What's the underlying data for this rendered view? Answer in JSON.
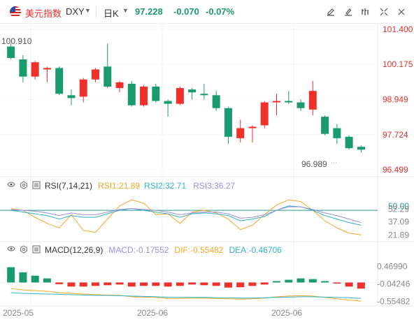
{
  "header": {
    "name": "美元指数",
    "code": "DXY",
    "period": "日K",
    "price": "97.228",
    "change": "-0.070",
    "change_pct": "-0.07%"
  },
  "colors": {
    "up": "#f0302b",
    "down": "#1a9b6d",
    "rsi1": "#f5a623",
    "rsi2": "#2fb3c9",
    "rsi3": "#9b8fe0",
    "dif": "#f5a623",
    "dea": "#2fb3c9"
  },
  "toolbar_icons": [
    "edit-icon",
    "draw-icon",
    "indicator-icon",
    "fullscreen-icon",
    "settings-icon"
  ],
  "chart_data": {
    "type": "candlestick",
    "price_axis": {
      "ticks": [
        "101.400",
        "100.175",
        "98.949",
        "97.724",
        "96.499"
      ],
      "ylim": [
        96.499,
        101.4
      ]
    },
    "annotations": {
      "high_label": "100.910",
      "low_label": "96.989"
    },
    "candles": [
      [
        100.8,
        100.4,
        100.91,
        100.35
      ],
      [
        100.35,
        99.75,
        100.5,
        99.55
      ],
      [
        99.75,
        100.25,
        100.3,
        99.65
      ],
      [
        100.0,
        100.05,
        100.1,
        99.55
      ],
      [
        100.05,
        99.15,
        100.1,
        99.1
      ],
      [
        99.1,
        99.0,
        99.3,
        98.75
      ],
      [
        99.05,
        99.65,
        99.7,
        98.85
      ],
      [
        99.65,
        100.0,
        100.05,
        99.55
      ],
      [
        100.1,
        99.4,
        100.9,
        99.35
      ],
      [
        99.35,
        99.55,
        99.6,
        99.2
      ],
      [
        99.5,
        98.75,
        99.6,
        98.7
      ],
      [
        98.75,
        99.4,
        99.45,
        98.7
      ],
      [
        99.4,
        98.9,
        99.5,
        98.85
      ],
      [
        98.9,
        98.8,
        98.95,
        98.35
      ],
      [
        98.8,
        99.35,
        99.4,
        98.75
      ],
      [
        99.3,
        99.2,
        99.35,
        98.95
      ],
      [
        99.15,
        99.1,
        99.5,
        98.95
      ],
      [
        99.1,
        98.65,
        99.25,
        98.55
      ],
      [
        98.65,
        97.65,
        98.7,
        97.4
      ],
      [
        97.6,
        97.95,
        98.25,
        97.45
      ],
      [
        97.95,
        98.0,
        98.05,
        97.45
      ],
      [
        98.05,
        98.85,
        98.9,
        97.95
      ],
      [
        98.85,
        98.9,
        99.15,
        98.4
      ],
      [
        98.9,
        98.85,
        99.25,
        98.8
      ],
      [
        98.85,
        98.65,
        98.95,
        98.55
      ],
      [
        98.6,
        99.25,
        99.6,
        98.4
      ],
      [
        98.35,
        97.75,
        98.4,
        97.7
      ],
      [
        97.95,
        97.6,
        98.1,
        97.4
      ],
      [
        97.65,
        97.25,
        97.7,
        97.2
      ],
      [
        97.3,
        97.2,
        97.35,
        97.1
      ]
    ],
    "x_labels": [
      "2025-05",
      "2025-06",
      "2025-06"
    ],
    "rsi": {
      "label": "RSI(7,14,21)",
      "values": [
        "RSI1:21.89",
        "RSI2:32.71",
        "RSI3:36.27"
      ],
      "axis_ticks": [
        "50.00",
        "52.29",
        "37.09",
        "21.89"
      ],
      "ylim": [
        15,
        70
      ],
      "rsi1": [
        52,
        50,
        42,
        35,
        30,
        45,
        27,
        25,
        40,
        55,
        62,
        58,
        45,
        46,
        35,
        48,
        50,
        47,
        40,
        28,
        33,
        45,
        56,
        62,
        60,
        50,
        38,
        30,
        24,
        22
      ],
      "rsi2": [
        50,
        48,
        46,
        44,
        40,
        44,
        42,
        42,
        46,
        50,
        52,
        50,
        48,
        46,
        42,
        46,
        47,
        46,
        44,
        38,
        40,
        43,
        50,
        55,
        54,
        50,
        44,
        40,
        36,
        33
      ],
      "rsi3": [
        51,
        50,
        49,
        47,
        44,
        47,
        45,
        45,
        48,
        51,
        52,
        51,
        50,
        48,
        45,
        47,
        48,
        48,
        46,
        41,
        42,
        45,
        50,
        54,
        54,
        51,
        47,
        44,
        40,
        36
      ]
    },
    "macd": {
      "label": "MACD(12,26,9)",
      "values": [
        "MACD:-0.17552",
        "DIF:-0.55482",
        "DEA:-0.46706"
      ],
      "axis_ticks": [
        "0.46990",
        "-0.04246",
        "-0.55482"
      ],
      "ylim": [
        -0.65,
        0.75
      ],
      "bars": [
        0.45,
        0.3,
        0.2,
        0.12,
        -0.05,
        -0.12,
        -0.12,
        -0.1,
        -0.08,
        -0.06,
        -0.12,
        -0.1,
        -0.1,
        -0.12,
        -0.1,
        -0.06,
        -0.08,
        -0.1,
        -0.15,
        -0.14,
        -0.1,
        -0.06,
        0.04,
        0.08,
        0.12,
        0.1,
        0.04,
        -0.02,
        -0.12,
        -0.18
      ],
      "dif": [
        -0.18,
        -0.22,
        -0.24,
        -0.26,
        -0.3,
        -0.32,
        -0.34,
        -0.36,
        -0.37,
        -0.38,
        -0.42,
        -0.43,
        -0.44,
        -0.47,
        -0.47,
        -0.46,
        -0.46,
        -0.47,
        -0.48,
        -0.49,
        -0.48,
        -0.46,
        -0.42,
        -0.4,
        -0.39,
        -0.4,
        -0.44,
        -0.48,
        -0.52,
        -0.55
      ],
      "dea": [
        -0.3,
        -0.32,
        -0.33,
        -0.34,
        -0.35,
        -0.36,
        -0.37,
        -0.38,
        -0.38,
        -0.39,
        -0.4,
        -0.41,
        -0.42,
        -0.43,
        -0.44,
        -0.44,
        -0.44,
        -0.45,
        -0.45,
        -0.46,
        -0.46,
        -0.45,
        -0.44,
        -0.43,
        -0.42,
        -0.42,
        -0.43,
        -0.44,
        -0.45,
        -0.47
      ]
    }
  }
}
